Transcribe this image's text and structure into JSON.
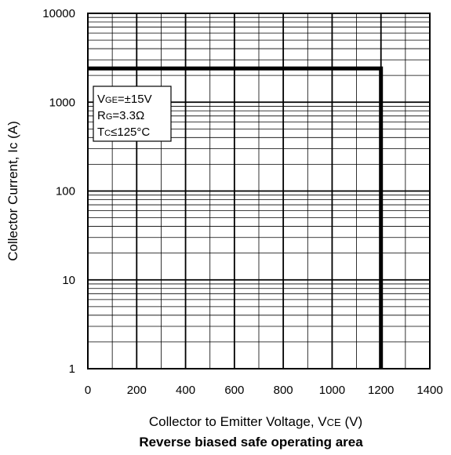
{
  "chart_data": {
    "type": "line",
    "title": "Reverse biased safe operating area",
    "xlabel": {
      "main": "Collector to Emitter Voltage, V",
      "sub": "CE",
      "unit": " (V)"
    },
    "ylabel": "Collector Current, Ic (A)",
    "xlim": [
      0,
      1400
    ],
    "ylim": [
      1,
      10000
    ],
    "y_scale": "log",
    "grid": true,
    "x_ticks": [
      "0",
      "200",
      "400",
      "600",
      "800",
      "1000",
      "1200",
      "1400"
    ],
    "y_ticks": [
      "1",
      "10",
      "100",
      "1000",
      "10000"
    ],
    "series": [
      {
        "x": [
          0,
          1200,
          1200
        ],
        "y": [
          2400,
          2400,
          1
        ]
      }
    ],
    "annotations": [
      {
        "main": "V",
        "sub": "GE",
        "rest": "=±15V"
      },
      {
        "main": "R",
        "sub": "G",
        "rest": "=3.3Ω"
      },
      {
        "main": "T",
        "sub": "C",
        "rest": "≤125°C"
      }
    ]
  }
}
